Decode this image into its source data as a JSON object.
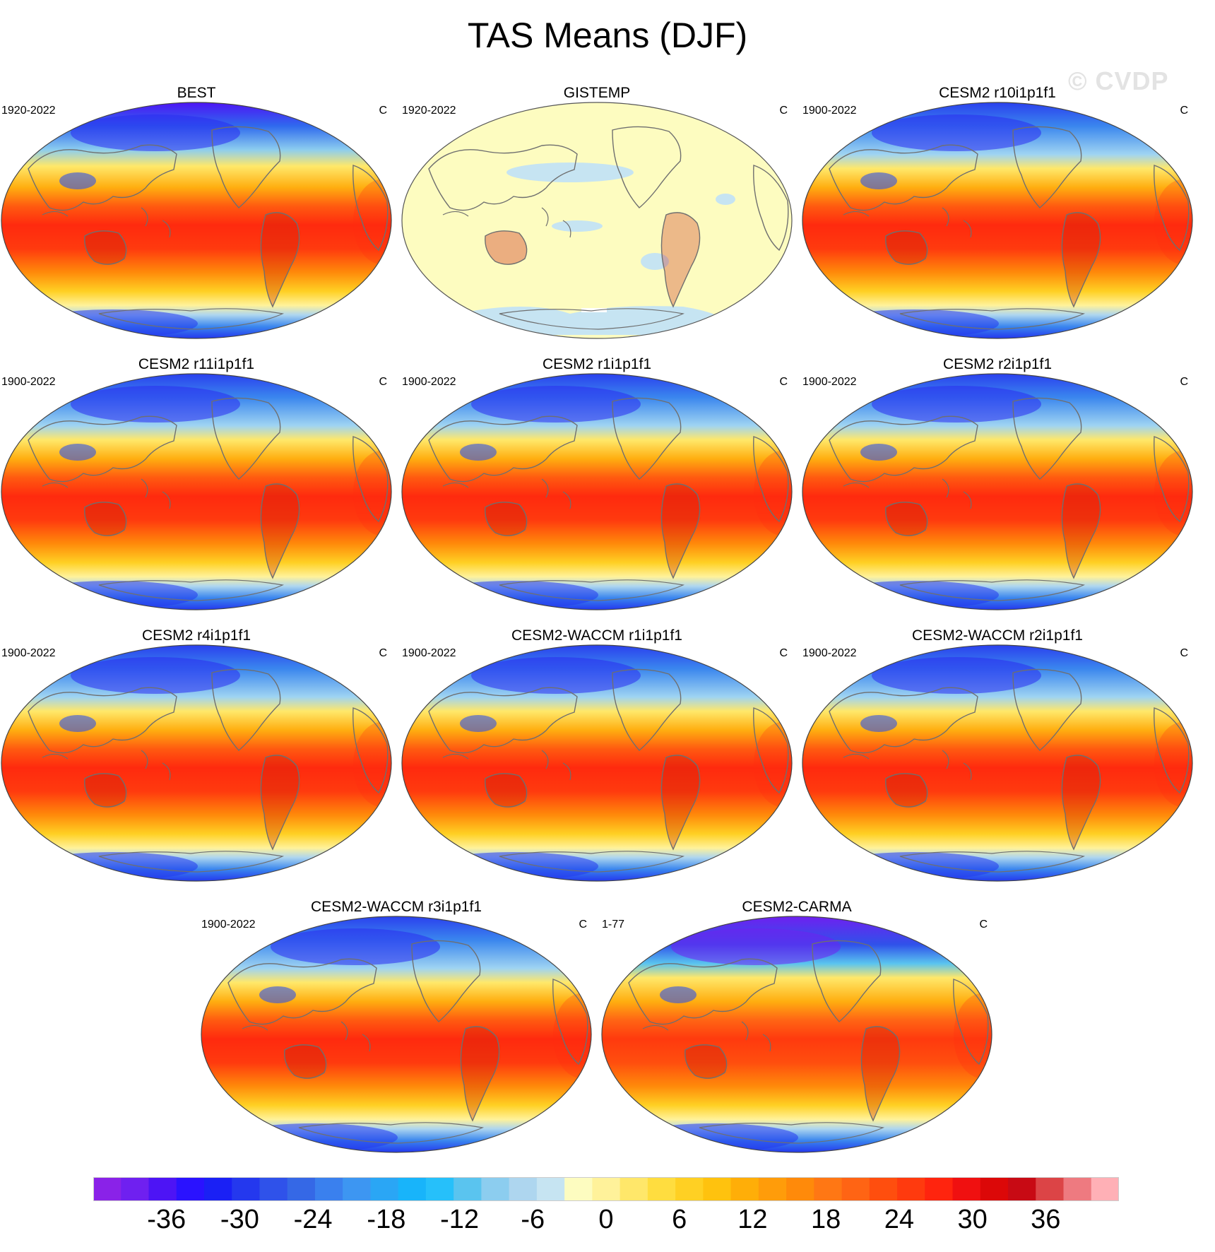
{
  "title": "TAS Means (DJF)",
  "watermark": "© CVDP",
  "panels": [
    {
      "title": "BEST",
      "period": "1920-2022",
      "units": "C",
      "style": "obs"
    },
    {
      "title": "GISTEMP",
      "period": "1920-2022",
      "units": "C",
      "style": "anomaly"
    },
    {
      "title": "CESM2 r10i1p1f1",
      "period": "1900-2022",
      "units": "C",
      "style": "model"
    },
    {
      "title": "CESM2 r11i1p1f1",
      "period": "1900-2022",
      "units": "C",
      "style": "model"
    },
    {
      "title": "CESM2 r1i1p1f1",
      "period": "1900-2022",
      "units": "C",
      "style": "model"
    },
    {
      "title": "CESM2 r2i1p1f1",
      "period": "1900-2022",
      "units": "C",
      "style": "model"
    },
    {
      "title": "CESM2 r4i1p1f1",
      "period": "1900-2022",
      "units": "C",
      "style": "model"
    },
    {
      "title": "CESM2-WACCM r1i1p1f1",
      "period": "1900-2022",
      "units": "C",
      "style": "model"
    },
    {
      "title": "CESM2-WACCM r2i1p1f1",
      "period": "1900-2022",
      "units": "C",
      "style": "model"
    },
    {
      "title": "CESM2-WACCM r3i1p1f1",
      "period": "1900-2022",
      "units": "C",
      "style": "model"
    },
    {
      "title": "CESM2-CARMA",
      "period": "1-77",
      "units": "C",
      "style": "cold"
    }
  ],
  "colorbar": {
    "tick_labels": [
      "-36",
      "-30",
      "-24",
      "-18",
      "-12",
      "-6",
      "0",
      "6",
      "12",
      "18",
      "24",
      "30",
      "36"
    ],
    "tick_values": [
      -36,
      -30,
      -24,
      -18,
      -12,
      -6,
      0,
      6,
      12,
      18,
      24,
      30,
      36
    ],
    "min": -42,
    "max": 42,
    "step": 2,
    "colors": [
      "#8a22e8",
      "#6f20f0",
      "#4d14f5",
      "#2a12ff",
      "#1a20f5",
      "#2438ee",
      "#2f52ea",
      "#3568e6",
      "#3a80ee",
      "#3d96f2",
      "#2aa6f5",
      "#18b4fa",
      "#26c0fa",
      "#5ac4ef",
      "#8ccdef",
      "#aed6ef",
      "#c6e4f2",
      "#fdfcc0",
      "#fff29a",
      "#ffe76a",
      "#ffdd3f",
      "#ffd023",
      "#ffc20e",
      "#ffae08",
      "#ff9c0a",
      "#ff8a0a",
      "#ff7714",
      "#ff6414",
      "#ff4e0e",
      "#ff3a0e",
      "#ff240e",
      "#f01010",
      "#dc0808",
      "#c80a14",
      "#dc4446",
      "#ee7a80",
      "#ffb0b6"
    ]
  }
}
